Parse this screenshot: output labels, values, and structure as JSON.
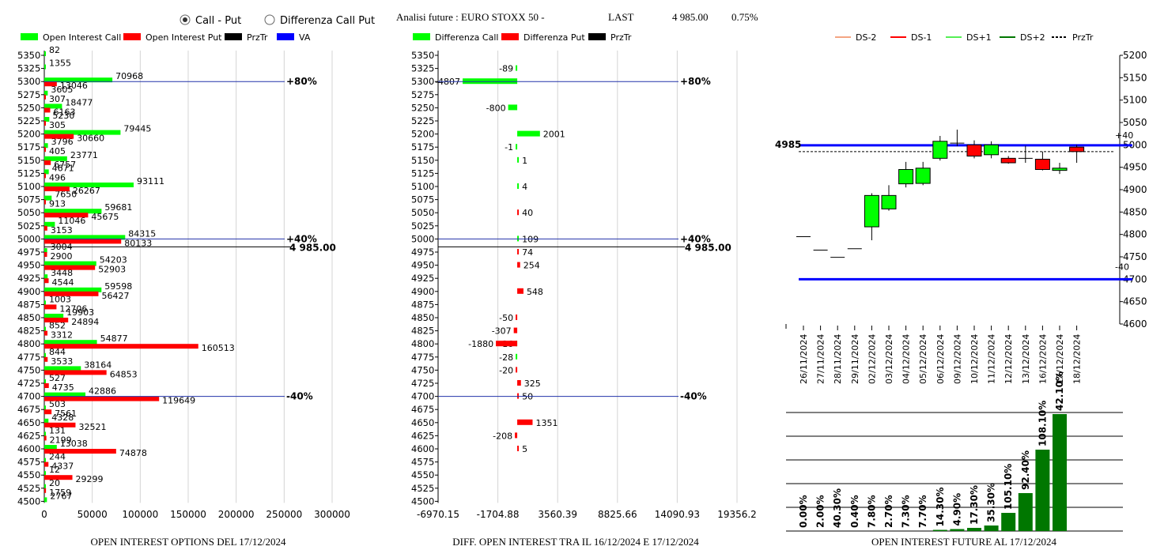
{
  "header": {
    "mode_options": [
      "Call - Put",
      "Differenza Call Put"
    ],
    "mode_selected": 0,
    "analysis_label": "Analisi future : EURO STOXX 50 -",
    "last_label": "LAST",
    "last_value": "4 985.00",
    "change_pct": "0.75%"
  },
  "colors": {
    "call": "#00ff00",
    "put": "#ff0000",
    "prztr": "#000000",
    "va": "#0000ff",
    "bar_green": "#007700",
    "ds_minus2": "#f4a582",
    "ds_minus1": "#ff0000",
    "ds_plus1": "#55ee55",
    "ds_plus2": "#007700"
  },
  "chart_data": [
    {
      "id": "oi_options",
      "type": "bar",
      "orientation": "horizontal",
      "title": "OPEN INTEREST OPTIONS DEL 17/12/2024",
      "legend": [
        "Open Interest Call",
        "Open Interest Put",
        "PrzTr",
        "VA"
      ],
      "strikes": [
        5350,
        5325,
        5300,
        5275,
        5250,
        5225,
        5200,
        5175,
        5150,
        5125,
        5100,
        5075,
        5050,
        5025,
        5000,
        4975,
        4950,
        4925,
        4900,
        4875,
        4850,
        4825,
        4800,
        4775,
        4750,
        4725,
        4700,
        4675,
        4650,
        4625,
        4600,
        4575,
        4550,
        4525,
        4500
      ],
      "series": [
        {
          "name": "Open Interest Call",
          "values": [
            82,
            1355,
            70968,
            3605,
            18477,
            5230,
            79445,
            3796,
            23771,
            4671,
            93111,
            7650,
            59681,
            11046,
            84315,
            3004,
            54203,
            3448,
            59598,
            1003,
            19903,
            852,
            54877,
            844,
            38164,
            527,
            42886,
            503,
            4328,
            131,
            13038,
            244,
            12,
            20,
            2767
          ]
        },
        {
          "name": "Open Interest Put",
          "values": [
            null,
            null,
            13046,
            307,
            6163,
            305,
            30660,
            405,
            6757,
            496,
            26267,
            913,
            45675,
            3153,
            80133,
            2900,
            52903,
            4544,
            56427,
            12706,
            24894,
            3312,
            160513,
            3533,
            64853,
            4735,
            119649,
            7561,
            32521,
            2199,
            74878,
            4337,
            29299,
            1759,
            null
          ]
        }
      ],
      "lines": [
        {
          "label": "+80%",
          "strike": 5300
        },
        {
          "label": "+40%",
          "strike": 5000
        },
        {
          "label": "-40%",
          "strike": 4700
        }
      ],
      "price_label": "4 985.00",
      "price": 4985,
      "xlim": [
        0,
        300000
      ],
      "xticks": [
        "0",
        "50000",
        "100000",
        "150000",
        "200000",
        "250000",
        "300000"
      ],
      "grid": true
    },
    {
      "id": "diff_oi",
      "type": "bar",
      "orientation": "horizontal",
      "title": "DIFF. OPEN INTEREST TRA IL 16/12/2024 E 17/12/2024",
      "legend": [
        "Differenza Call",
        "Differenza Put",
        "PrzTr"
      ],
      "strikes": [
        5350,
        5325,
        5300,
        5275,
        5250,
        5225,
        5200,
        5175,
        5150,
        5125,
        5100,
        5075,
        5050,
        5025,
        5000,
        4975,
        4950,
        4925,
        4900,
        4875,
        4850,
        4825,
        4800,
        4775,
        4750,
        4725,
        4700,
        4675,
        4650,
        4625,
        4600,
        4575,
        4550,
        4525,
        4500
      ],
      "series": [
        {
          "name": "Differenza Call",
          "values": [
            null,
            -89,
            -4807,
            null,
            -800,
            null,
            2001,
            -1,
            1,
            null,
            4,
            null,
            null,
            null,
            109,
            null,
            null,
            null,
            null,
            null,
            null,
            null,
            -16,
            -28,
            null,
            null,
            null,
            null,
            null,
            null,
            null,
            null,
            null,
            null,
            null
          ]
        },
        {
          "name": "Differenza Put",
          "values": [
            null,
            null,
            null,
            null,
            null,
            null,
            null,
            null,
            null,
            null,
            null,
            null,
            40,
            null,
            null,
            74,
            254,
            null,
            548,
            null,
            -50,
            -307,
            -1880,
            null,
            -20,
            325,
            50,
            null,
            1351,
            -208,
            5,
            null,
            null,
            null,
            null
          ]
        }
      ],
      "lines": [
        {
          "label": "+80%",
          "strike": 5300
        },
        {
          "label": "+40%",
          "strike": 5000
        },
        {
          "label": "-40%",
          "strike": 4700
        }
      ],
      "price_label": "4 985.00",
      "price": 4985,
      "xlim": [
        -6970.15,
        19356.2
      ],
      "xticks": [
        "-6970.15",
        "-1704.88",
        "3560.39",
        "8825.66",
        "14090.93",
        "19356.2"
      ],
      "grid": true
    },
    {
      "id": "future_candles",
      "type": "candlestick",
      "legend": [
        "DS-2",
        "DS-1",
        "DS+1",
        "DS+2",
        "PrzTr"
      ],
      "dates": [
        "26/11/2024",
        "27/11/2024",
        "28/11/2024",
        "29/11/2024",
        "02/12/2024",
        "03/12/2024",
        "04/12/2024",
        "05/12/2024",
        "06/12/2024",
        "09/12/2024",
        "10/12/2024",
        "11/12/2024",
        "12/12/2024",
        "13/12/2024",
        "16/12/2024",
        "17/12/2024",
        "18/12/2024"
      ],
      "candles": [
        {
          "o": 4795,
          "h": 4795,
          "l": 4795,
          "c": 4795
        },
        {
          "o": 4765,
          "h": 4765,
          "l": 4765,
          "c": 4765
        },
        {
          "o": 4749,
          "h": 4749,
          "l": 4749,
          "c": 4749
        },
        {
          "o": 4768,
          "h": 4768,
          "l": 4768,
          "c": 4768
        },
        {
          "o": 4817,
          "h": 4892,
          "l": 4787,
          "c": 4887
        },
        {
          "o": 4857,
          "h": 4910,
          "l": 4853,
          "c": 4887
        },
        {
          "o": 4913,
          "h": 4962,
          "l": 4905,
          "c": 4945
        },
        {
          "o": 4914,
          "h": 4962,
          "l": 4910,
          "c": 4948
        },
        {
          "o": 4970,
          "h": 5020,
          "l": 4965,
          "c": 5008
        },
        {
          "o": 5004,
          "h": 5034,
          "l": 4997,
          "c": 5004
        },
        {
          "o": 5000,
          "h": 5010,
          "l": 4970,
          "c": 4975
        },
        {
          "o": 4978,
          "h": 5008,
          "l": 4970,
          "c": 5000
        },
        {
          "o": 4970,
          "h": 4975,
          "l": 4958,
          "c": 4960
        },
        {
          "o": 4970,
          "h": 4998,
          "l": 4960,
          "c": 4970
        },
        {
          "o": 4968,
          "h": 4985,
          "l": 4943,
          "c": 4945
        },
        {
          "o": 4943,
          "h": 4960,
          "l": 4935,
          "c": 4948
        },
        {
          "o": 4995,
          "h": 5000,
          "l": 4960,
          "c": 4985
        }
      ],
      "hlines": [
        {
          "value": 4999,
          "label": "+40",
          "color": "va"
        },
        {
          "value": 4700,
          "label": "-40",
          "color": "va"
        }
      ],
      "price_value": 4985,
      "price_label": "4985",
      "ylim": [
        4600,
        5200
      ],
      "yticks": [
        "5200",
        "5150",
        "5100",
        "5050",
        "5000",
        "4950",
        "4900",
        "4850",
        "4800",
        "4750",
        "4700",
        "4650",
        "4600"
      ]
    },
    {
      "id": "oi_future",
      "type": "bar",
      "title": "OPEN INTEREST FUTURE AL 17/12/2024",
      "categories": [
        "26/11/2024",
        "27/11/2024",
        "28/11/2024",
        "29/11/2024",
        "02/12/2024",
        "03/12/2024",
        "04/12/2024",
        "05/12/2024",
        "06/12/2024",
        "09/12/2024",
        "10/12/2024",
        "11/12/2024",
        "12/12/2024",
        "13/12/2024",
        "16/12/2024",
        "17/12/2024",
        "18/12/2024"
      ],
      "labels": [
        "0.00%",
        "2.00%",
        "40.30%",
        "0.40%",
        "7.80%",
        "2.70%",
        "7.30%",
        "7.70%",
        "14.30%",
        "4.90%",
        "17.30%",
        "35.30%",
        "105.10%",
        "92.40%",
        "108.10%",
        "42.10%",
        ""
      ],
      "values": [
        0,
        0,
        0,
        0,
        0,
        0,
        0,
        0,
        1.5,
        2.5,
        4,
        7,
        23,
        48,
        103,
        148,
        0
      ]
    }
  ]
}
